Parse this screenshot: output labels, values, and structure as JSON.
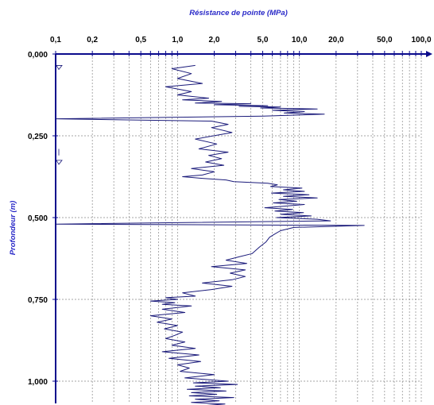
{
  "chart_data": {
    "type": "line",
    "title": "Résistance de pointe (MPa)",
    "xlabel": "Résistance de pointe (MPa)",
    "ylabel": "Profondeur (m)",
    "x_scale": "log",
    "x_axis_position": "top",
    "y_axis_inverted": true,
    "xlim": [
      0.1,
      100
    ],
    "ylim": [
      0,
      1.07
    ],
    "grid": true,
    "x_tick_labels": [
      {
        "value": 0.1,
        "label": "0,1"
      },
      {
        "value": 0.2,
        "label": "0,2"
      },
      {
        "value": 0.5,
        "label": "0,5"
      },
      {
        "value": 1,
        "label": "1,0"
      },
      {
        "value": 2,
        "label": "2,0"
      },
      {
        "value": 5,
        "label": "5,0"
      },
      {
        "value": 10,
        "label": "10,0"
      },
      {
        "value": 20,
        "label": "20,0"
      },
      {
        "value": 50,
        "label": "50,0"
      },
      {
        "value": 100,
        "label": "100,0"
      }
    ],
    "y_tick_labels": [
      {
        "value": 0,
        "label": "0,000"
      },
      {
        "value": 0.25,
        "label": "0,250"
      },
      {
        "value": 0.5,
        "label": "0,500"
      },
      {
        "value": 0.75,
        "label": "0,750"
      },
      {
        "value": 1,
        "label": "1,000"
      }
    ],
    "colors": {
      "axis": "#0a0a8c",
      "series": "#1a1a7a",
      "title": "#2a2ac8",
      "grid": "#888888"
    },
    "series": [
      {
        "x": [
          1.4,
          0.9,
          1.3,
          1.0,
          1.6,
          0.8,
          1.3,
          1.0,
          1.8,
          1.1,
          2.3,
          1.4,
          4.0,
          2.0,
          5.5,
          3.2,
          7.0,
          4.8,
          14.0,
          6.0,
          11.0,
          7.5,
          16.0,
          5.0,
          0.1,
          1.9,
          2.6,
          1.9,
          2.8,
          1.4,
          2.1,
          1.5,
          2.6,
          1.8,
          2.3,
          1.7,
          2.4,
          1.3,
          2.0,
          1.6,
          1.1,
          1.6,
          2.5,
          2.9,
          5.5,
          6.6,
          5.8,
          10.5,
          7.4,
          11.0,
          5.9,
          12.0,
          7.4,
          14.0,
          6.8,
          9.5,
          6.1,
          11.0,
          5.2,
          8.8,
          6.3,
          10.8,
          7.0,
          12.5,
          6.5,
          14.0,
          18.0,
          0.1,
          34.0,
          9.0,
          7.0,
          6.3,
          5.7,
          5.3,
          4.7,
          4.1,
          3.2,
          2.5,
          3.7,
          1.9,
          3.6,
          2.7,
          3.6,
          2.8,
          1.6,
          2.8,
          1.9,
          1.1,
          1.4,
          0.8,
          1.0,
          0.6,
          0.95,
          0.75,
          1.3,
          0.75,
          1.15,
          0.6,
          0.9,
          0.68,
          1.0,
          0.78,
          1.1,
          0.95,
          0.8,
          1.15,
          0.9,
          1.4,
          0.75,
          1.5,
          0.85,
          1.55,
          1.0,
          1.25,
          1.05,
          2.0,
          1.15,
          2.6,
          1.35,
          3.1,
          1.4,
          2.25,
          1.2,
          2.5,
          1.3,
          2.1,
          1.25,
          2.9,
          1.4,
          2.2,
          1.3,
          2.45,
          1.6,
          2.05
        ],
        "y": [
          0.035,
          0.045,
          0.06,
          0.075,
          0.09,
          0.1,
          0.115,
          0.125,
          0.135,
          0.14,
          0.145,
          0.15,
          0.152,
          0.155,
          0.158,
          0.16,
          0.162,
          0.165,
          0.168,
          0.172,
          0.176,
          0.18,
          0.184,
          0.19,
          0.198,
          0.205,
          0.215,
          0.225,
          0.24,
          0.26,
          0.275,
          0.29,
          0.3,
          0.31,
          0.32,
          0.33,
          0.34,
          0.35,
          0.36,
          0.37,
          0.375,
          0.38,
          0.385,
          0.39,
          0.395,
          0.4,
          0.405,
          0.41,
          0.415,
          0.42,
          0.425,
          0.43,
          0.435,
          0.44,
          0.445,
          0.45,
          0.455,
          0.46,
          0.47,
          0.475,
          0.48,
          0.485,
          0.49,
          0.495,
          0.5,
          0.505,
          0.51,
          0.52,
          0.524,
          0.53,
          0.54,
          0.55,
          0.56,
          0.575,
          0.59,
          0.61,
          0.62,
          0.63,
          0.64,
          0.65,
          0.66,
          0.67,
          0.68,
          0.69,
          0.7,
          0.71,
          0.72,
          0.73,
          0.74,
          0.745,
          0.75,
          0.755,
          0.76,
          0.765,
          0.77,
          0.78,
          0.79,
          0.8,
          0.81,
          0.82,
          0.83,
          0.84,
          0.85,
          0.86,
          0.87,
          0.88,
          0.89,
          0.9,
          0.91,
          0.92,
          0.93,
          0.94,
          0.95,
          0.96,
          0.97,
          0.98,
          0.99,
          1.0,
          1.005,
          1.01,
          1.015,
          1.02,
          1.025,
          1.03,
          1.035,
          1.04,
          1.045,
          1.05,
          1.055,
          1.06,
          1.065,
          1.07,
          1.075,
          1.08
        ]
      }
    ]
  }
}
